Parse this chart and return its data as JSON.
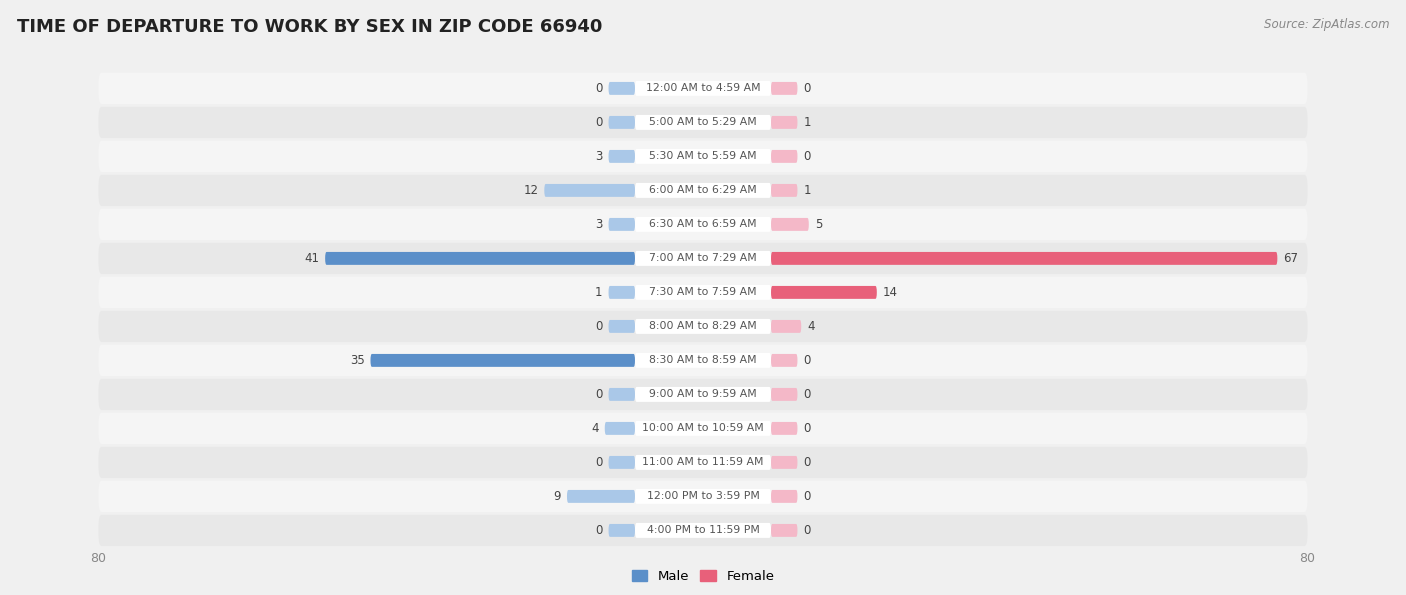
{
  "title": "TIME OF DEPARTURE TO WORK BY SEX IN ZIP CODE 66940",
  "source": "Source: ZipAtlas.com",
  "categories": [
    "12:00 AM to 4:59 AM",
    "5:00 AM to 5:29 AM",
    "5:30 AM to 5:59 AM",
    "6:00 AM to 6:29 AM",
    "6:30 AM to 6:59 AM",
    "7:00 AM to 7:29 AM",
    "7:30 AM to 7:59 AM",
    "8:00 AM to 8:29 AM",
    "8:30 AM to 8:59 AM",
    "9:00 AM to 9:59 AM",
    "10:00 AM to 10:59 AM",
    "11:00 AM to 11:59 AM",
    "12:00 PM to 3:59 PM",
    "4:00 PM to 11:59 PM"
  ],
  "male_values": [
    0,
    0,
    3,
    12,
    3,
    41,
    1,
    0,
    35,
    0,
    4,
    0,
    9,
    0
  ],
  "female_values": [
    0,
    1,
    0,
    1,
    5,
    67,
    14,
    4,
    0,
    0,
    0,
    0,
    0,
    0
  ],
  "male_color_light": "#aac8e8",
  "male_color_dark": "#5b8fc9",
  "female_color_light": "#f4b8c8",
  "female_color_dark": "#e8607a",
  "axis_max": 80,
  "bg_color": "#f0f0f0",
  "row_bg_even": "#f5f5f5",
  "row_bg_odd": "#e8e8e8",
  "label_color": "#555555",
  "title_color": "#222222",
  "legend_male_color": "#5b8fc9",
  "legend_female_color": "#e8607a",
  "min_bar": 3.5
}
